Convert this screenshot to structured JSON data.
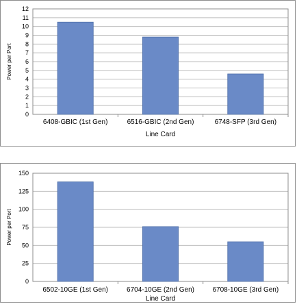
{
  "colors": {
    "bar": "#6a8ac7",
    "bar_edge": "#4f6fa8",
    "grid": "#bdbdbd",
    "axis": "#8c8c8c"
  },
  "chart_data": [
    {
      "type": "bar",
      "categories": [
        "6408-GBIC (1st Gen)",
        "6516-GBIC (2nd Gen)",
        "6748-SFP (3rd Gen)"
      ],
      "values": [
        10.5,
        8.8,
        4.6
      ],
      "xlabel": "Line Card",
      "ylabel": "Power per Port",
      "ylim": [
        0,
        12
      ],
      "yticks": [
        0,
        1,
        2,
        3,
        4,
        5,
        6,
        7,
        8,
        9,
        10,
        11,
        12
      ],
      "grid": true
    },
    {
      "type": "bar",
      "categories": [
        "6502-10GE (1st Gen)",
        "6704-10GE (2nd Gen)",
        "6708-10GE (3rd Gen)"
      ],
      "values": [
        138,
        76,
        55
      ],
      "xlabel": "Line Card",
      "ylabel": "Power per Port",
      "ylim": [
        0,
        150
      ],
      "yticks": [
        0,
        25,
        50,
        75,
        100,
        125,
        150
      ],
      "grid": true
    }
  ]
}
